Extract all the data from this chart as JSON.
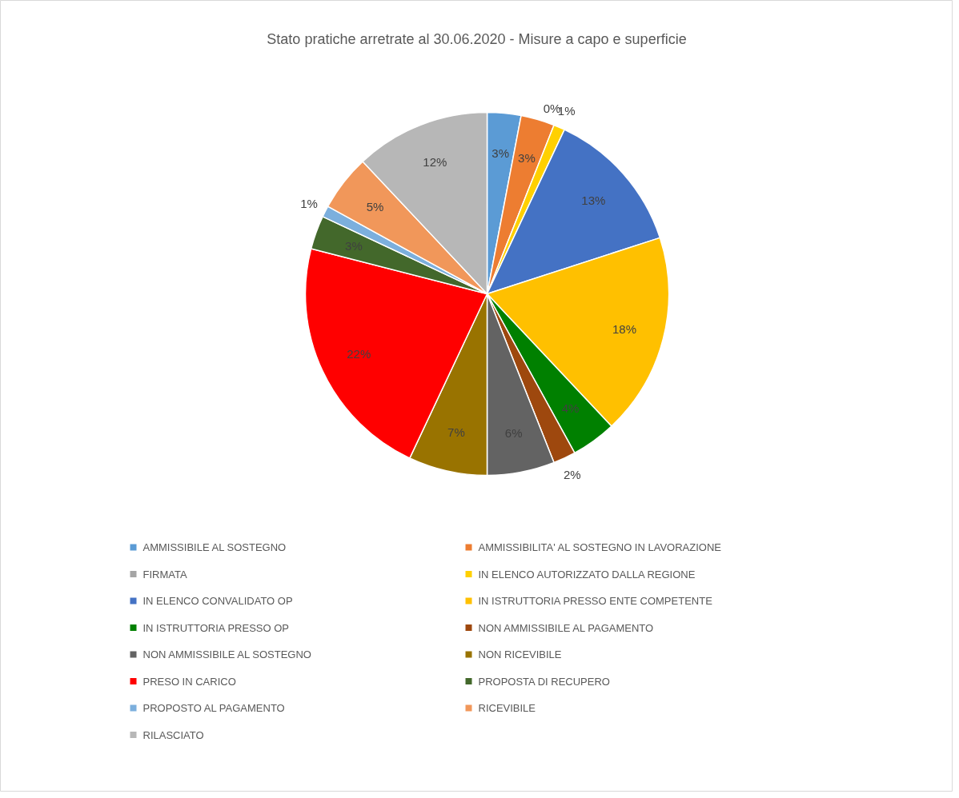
{
  "chart_data": {
    "type": "pie",
    "title": "Stato pratiche arretrate al 30.06.2020 - Misure a capo e superficie",
    "categories": [
      "AMMISSIBILE AL SOSTEGNO",
      "AMMISSIBILITA' AL SOSTEGNO IN LAVORAZIONE",
      "FIRMATA",
      "IN ELENCO AUTORIZZATO DALLA REGIONE",
      "IN ELENCO CONVALIDATO OP",
      "IN ISTRUTTORIA PRESSO ENTE COMPETENTE",
      "IN ISTRUTTORIA PRESSO OP",
      "NON AMMISSIBILE AL PAGAMENTO",
      "NON AMMISSIBILE AL SOSTEGNO",
      "NON RICEVIBILE",
      "PRESO IN CARICO",
      "PROPOSTA DI RECUPERO",
      "PROPOSTO AL PAGAMENTO",
      "RICEVIBILE",
      "RILASCIATO"
    ],
    "values": [
      3,
      3,
      0,
      1,
      13,
      18,
      4,
      2,
      6,
      7,
      22,
      3,
      1,
      5,
      12
    ],
    "colors": [
      "#5b9bd5",
      "#ed7d31",
      "#a5a5a5",
      "#ffd000",
      "#4472c4",
      "#ffc000",
      "#008000",
      "#9e480e",
      "#636363",
      "#997300",
      "#ff0000",
      "#43682b",
      "#7cafdd",
      "#f1975a",
      "#b7b7b7"
    ],
    "value_labels": [
      "3%",
      "3%",
      "0%",
      "1%",
      "13%",
      "18%",
      "4%",
      "2%",
      "6%",
      "7%",
      "22%",
      "3%",
      "1%",
      "5%",
      "12%"
    ],
    "legend": "bottom"
  }
}
